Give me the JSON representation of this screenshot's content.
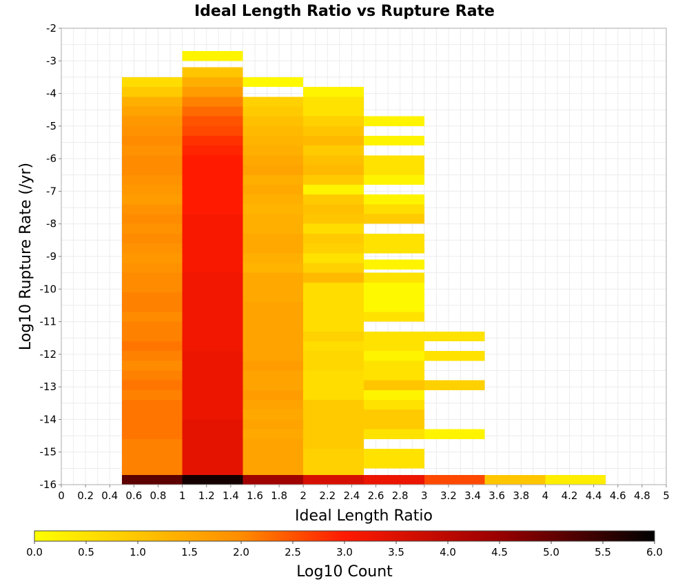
{
  "chart_data": {
    "type": "heatmap",
    "title": "Ideal Length Ratio vs Rupture Rate",
    "xlabel": "Ideal Length Ratio",
    "ylabel": "Log10 Rupture Rate (/yr)",
    "xlim": [
      0,
      5
    ],
    "ylim": [
      -16,
      -2
    ],
    "x_ticks": [
      "0",
      "0.2",
      "0.4",
      "0.6",
      "0.8",
      "1",
      "1.2",
      "1.4",
      "1.6",
      "1.8",
      "2",
      "2.2",
      "2.4",
      "2.6",
      "2.8",
      "3",
      "3.2",
      "3.4",
      "3.6",
      "3.8",
      "4",
      "4.2",
      "4.4",
      "4.6",
      "4.8",
      "5"
    ],
    "y_ticks": [
      "-2",
      "-3",
      "-4",
      "-5",
      "-6",
      "-7",
      "-8",
      "-9",
      "-10",
      "-11",
      "-12",
      "-13",
      "-14",
      "-15",
      "-16"
    ],
    "grid": true,
    "colorbar": {
      "label": "Log10 Count",
      "range": [
        0,
        6
      ],
      "ticks": [
        "0.0",
        "0.5",
        "1.0",
        "1.5",
        "2.0",
        "2.5",
        "3.0",
        "3.5",
        "4.0",
        "4.5",
        "5.0",
        "5.5",
        "6.0"
      ]
    },
    "cell_width_x": 0.5,
    "cell_height_y": 0.3,
    "columns": [
      {
        "x0": 0.5,
        "x1": 1.0,
        "cells": [
          [
            -3.8,
            0.6
          ],
          [
            -4.1,
            0.9
          ],
          [
            -4.4,
            1.4
          ],
          [
            -4.7,
            1.6
          ],
          [
            -5.0,
            1.8
          ],
          [
            -5.3,
            1.9
          ],
          [
            -5.6,
            2.0
          ],
          [
            -5.9,
            1.9
          ],
          [
            -6.2,
            2.0
          ],
          [
            -6.5,
            2.0
          ],
          [
            -6.8,
            1.9
          ],
          [
            -7.1,
            1.8
          ],
          [
            -7.4,
            1.7
          ],
          [
            -7.7,
            1.9
          ],
          [
            -8.0,
            2.0
          ],
          [
            -8.3,
            1.9
          ],
          [
            -8.6,
            2.0
          ],
          [
            -8.9,
            1.9
          ],
          [
            -9.2,
            1.8
          ],
          [
            -9.5,
            1.9
          ],
          [
            -9.8,
            2.0
          ],
          [
            -10.1,
            2.0
          ],
          [
            -10.4,
            2.1
          ],
          [
            -10.7,
            2.1
          ],
          [
            -11.0,
            2.0
          ],
          [
            -11.3,
            2.1
          ],
          [
            -11.6,
            2.1
          ],
          [
            -11.9,
            2.2
          ],
          [
            -12.2,
            2.1
          ],
          [
            -12.5,
            2.0
          ],
          [
            -12.8,
            2.1
          ],
          [
            -13.1,
            2.2
          ],
          [
            -13.4,
            2.1
          ],
          [
            -13.7,
            2.2
          ],
          [
            -14.0,
            2.2
          ],
          [
            -14.3,
            2.2
          ],
          [
            -14.6,
            2.2
          ],
          [
            -14.9,
            2.1
          ],
          [
            -15.2,
            2.1
          ],
          [
            -15.5,
            2.1
          ],
          [
            -15.8,
            2.1
          ],
          [
            -16.0,
            5.1
          ]
        ]
      },
      {
        "x0": 1.0,
        "x1": 1.5,
        "cells": [
          [
            -3.0,
            0.2
          ],
          [
            -3.5,
            1.0
          ],
          [
            -3.8,
            1.4
          ],
          [
            -4.1,
            1.7
          ],
          [
            -4.4,
            2.1
          ],
          [
            -4.7,
            2.3
          ],
          [
            -5.0,
            2.5
          ],
          [
            -5.3,
            2.6
          ],
          [
            -5.6,
            2.8
          ],
          [
            -5.9,
            2.9
          ],
          [
            -6.2,
            3.0
          ],
          [
            -6.5,
            3.0
          ],
          [
            -6.8,
            3.0
          ],
          [
            -7.1,
            3.0
          ],
          [
            -7.4,
            3.0
          ],
          [
            -7.7,
            3.0
          ],
          [
            -8.0,
            3.1
          ],
          [
            -8.3,
            3.1
          ],
          [
            -8.6,
            3.1
          ],
          [
            -8.9,
            3.1
          ],
          [
            -9.2,
            3.1
          ],
          [
            -9.5,
            3.1
          ],
          [
            -9.8,
            3.2
          ],
          [
            -10.1,
            3.2
          ],
          [
            -10.4,
            3.2
          ],
          [
            -10.7,
            3.2
          ],
          [
            -11.0,
            3.2
          ],
          [
            -11.3,
            3.2
          ],
          [
            -11.6,
            3.2
          ],
          [
            -11.9,
            3.2
          ],
          [
            -12.2,
            3.3
          ],
          [
            -12.5,
            3.3
          ],
          [
            -12.8,
            3.3
          ],
          [
            -13.1,
            3.3
          ],
          [
            -13.4,
            3.3
          ],
          [
            -13.7,
            3.3
          ],
          [
            -14.0,
            3.3
          ],
          [
            -14.3,
            3.4
          ],
          [
            -14.6,
            3.4
          ],
          [
            -14.9,
            3.4
          ],
          [
            -15.2,
            3.4
          ],
          [
            -15.5,
            3.4
          ],
          [
            -15.8,
            3.4
          ],
          [
            -16.0,
            5.8
          ]
        ]
      },
      {
        "x0": 1.5,
        "x1": 2.0,
        "cells": [
          [
            -3.8,
            0.1
          ],
          [
            -4.4,
            0.8
          ],
          [
            -4.7,
            0.9
          ],
          [
            -5.0,
            1.1
          ],
          [
            -5.3,
            1.2
          ],
          [
            -5.6,
            1.3
          ],
          [
            -5.9,
            1.4
          ],
          [
            -6.2,
            1.5
          ],
          [
            -6.5,
            1.6
          ],
          [
            -6.8,
            1.4
          ],
          [
            -7.1,
            1.5
          ],
          [
            -7.4,
            1.4
          ],
          [
            -7.7,
            1.3
          ],
          [
            -8.0,
            1.4
          ],
          [
            -8.3,
            1.4
          ],
          [
            -8.6,
            1.5
          ],
          [
            -8.9,
            1.5
          ],
          [
            -9.2,
            1.4
          ],
          [
            -9.5,
            1.3
          ],
          [
            -9.8,
            1.5
          ],
          [
            -10.1,
            1.5
          ],
          [
            -10.4,
            1.5
          ],
          [
            -10.7,
            1.6
          ],
          [
            -11.0,
            1.6
          ],
          [
            -11.3,
            1.6
          ],
          [
            -11.6,
            1.6
          ],
          [
            -11.9,
            1.6
          ],
          [
            -12.2,
            1.6
          ],
          [
            -12.5,
            1.7
          ],
          [
            -12.8,
            1.6
          ],
          [
            -13.1,
            1.6
          ],
          [
            -13.4,
            1.7
          ],
          [
            -13.7,
            1.6
          ],
          [
            -14.0,
            1.5
          ],
          [
            -14.3,
            1.6
          ],
          [
            -14.6,
            1.5
          ],
          [
            -14.9,
            1.6
          ],
          [
            -15.2,
            1.6
          ],
          [
            -15.5,
            1.6
          ],
          [
            -15.8,
            1.6
          ],
          [
            -16.0,
            4.4
          ]
        ]
      },
      {
        "x0": 2.0,
        "x1": 2.5,
        "cells": [
          [
            -4.1,
            0.2
          ],
          [
            -4.4,
            0.5
          ],
          [
            -4.7,
            0.5
          ],
          [
            -5.0,
            0.8
          ],
          [
            -5.3,
            1.0
          ],
          [
            -5.6,
            1.2
          ],
          [
            -5.9,
            0.9
          ],
          [
            -6.2,
            1.1
          ],
          [
            -6.5,
            1.2
          ],
          [
            -6.8,
            0.9
          ],
          [
            -7.1,
            0.2
          ],
          [
            -7.4,
            0.9
          ],
          [
            -7.7,
            1.1
          ],
          [
            -8.0,
            1.0
          ],
          [
            -8.3,
            0.6
          ],
          [
            -8.6,
            0.9
          ],
          [
            -8.9,
            0.8
          ],
          [
            -9.2,
            0.5
          ],
          [
            -9.5,
            0.8
          ],
          [
            -9.8,
            1.2
          ],
          [
            -10.1,
            0.6
          ],
          [
            -10.4,
            0.6
          ],
          [
            -10.7,
            0.6
          ],
          [
            -11.0,
            0.6
          ],
          [
            -11.3,
            0.6
          ],
          [
            -11.6,
            0.8
          ],
          [
            -11.9,
            0.6
          ],
          [
            -12.2,
            0.7
          ],
          [
            -12.5,
            0.7
          ],
          [
            -12.8,
            0.6
          ],
          [
            -13.1,
            0.6
          ],
          [
            -13.4,
            0.6
          ],
          [
            -13.7,
            0.9
          ],
          [
            -14.0,
            0.9
          ],
          [
            -14.3,
            0.9
          ],
          [
            -14.6,
            0.9
          ],
          [
            -14.9,
            0.9
          ],
          [
            -15.2,
            0.8
          ],
          [
            -15.5,
            0.8
          ],
          [
            -15.8,
            0.8
          ],
          [
            -16.0,
            3.6
          ]
        ]
      },
      {
        "x0": 2.5,
        "x1": 3.0,
        "cells": [
          [
            -5.0,
            0.2
          ],
          [
            -5.6,
            0.2
          ],
          [
            -6.2,
            0.5
          ],
          [
            -6.5,
            0.5
          ],
          [
            -6.8,
            0.2
          ],
          [
            -7.4,
            0.2
          ],
          [
            -7.7,
            0.6
          ],
          [
            -8.0,
            0.9
          ],
          [
            -8.6,
            0.5
          ],
          [
            -8.9,
            0.5
          ],
          [
            -9.4,
            0.2
          ],
          [
            -9.8,
            0.5
          ],
          [
            -10.1,
            0.1
          ],
          [
            -10.4,
            0.1
          ],
          [
            -10.7,
            0.1
          ],
          [
            -11.0,
            0.5
          ],
          [
            -11.6,
            0.5
          ],
          [
            -11.9,
            0.5
          ],
          [
            -12.2,
            0.2
          ],
          [
            -12.5,
            0.5
          ],
          [
            -12.8,
            0.5
          ],
          [
            -13.1,
            1.0
          ],
          [
            -13.4,
            0.2
          ],
          [
            -13.7,
            0.5
          ],
          [
            -14.0,
            0.9
          ],
          [
            -14.3,
            0.9
          ],
          [
            -14.6,
            0.5
          ],
          [
            -15.2,
            0.5
          ],
          [
            -15.5,
            0.5
          ],
          [
            -16.0,
            3.3
          ]
        ]
      },
      {
        "x0": 3.0,
        "x1": 3.5,
        "cells": [
          [
            -11.6,
            0.5
          ],
          [
            -12.2,
            0.5
          ],
          [
            -13.1,
            0.8
          ],
          [
            -14.6,
            0.2
          ],
          [
            -16.0,
            2.6
          ]
        ]
      },
      {
        "x0": 3.5,
        "x1": 4.0,
        "cells": [
          [
            -16.0,
            1.0
          ]
        ]
      },
      {
        "x0": 4.0,
        "x1": 4.5,
        "cells": [
          [
            -16.0,
            0.3
          ]
        ]
      }
    ]
  }
}
